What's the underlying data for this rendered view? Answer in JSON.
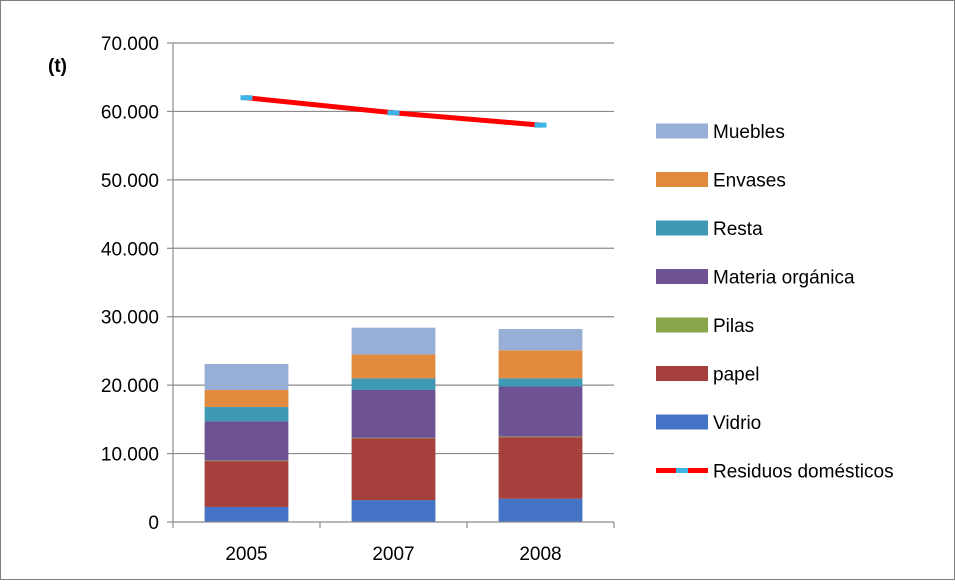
{
  "chart_data": {
    "type": "bar",
    "stacked": true,
    "unit_label": "(t)",
    "categories": [
      "2005",
      "2007",
      "2008"
    ],
    "ylim": [
      0,
      70000
    ],
    "y_ticks": [
      0,
      10000,
      20000,
      30000,
      40000,
      50000,
      60000,
      70000
    ],
    "y_tick_labels": [
      "0",
      "10.000",
      "20.000",
      "30.000",
      "40.000",
      "50.000",
      "60.000",
      "70.000"
    ],
    "grid": true,
    "legend_position": "right",
    "series": [
      {
        "name": "Vidrio",
        "type": "bar",
        "color": "#4472C4",
        "values": [
          2200,
          3200,
          3400
        ]
      },
      {
        "name": "papel",
        "type": "bar",
        "color": "#A5403D",
        "values": [
          6700,
          9000,
          9000
        ]
      },
      {
        "name": "Pilas",
        "type": "bar",
        "color": "#8AA64A",
        "values": [
          100,
          100,
          100
        ]
      },
      {
        "name": "Materia orgánica",
        "type": "bar",
        "color": "#6E5394",
        "values": [
          5700,
          7000,
          7300
        ]
      },
      {
        "name": "Resta",
        "type": "bar",
        "color": "#3F98B4",
        "values": [
          2100,
          1700,
          1200
        ]
      },
      {
        "name": "Envases",
        "type": "bar",
        "color": "#E28A3E",
        "values": [
          2500,
          3500,
          4100
        ]
      },
      {
        "name": "Muebles",
        "type": "bar",
        "color": "#97AED6",
        "values": [
          3800,
          3900,
          3100
        ]
      },
      {
        "name": "Residuos domésticos",
        "type": "line",
        "color": "#FF0000",
        "marker_color": "#3CB4E6",
        "values": [
          62000,
          59800,
          58000
        ]
      }
    ],
    "legend_order": [
      "Muebles",
      "Envases",
      "Resta",
      "Materia orgánica",
      "Pilas",
      "papel",
      "Vidrio",
      "Residuos domésticos"
    ]
  }
}
